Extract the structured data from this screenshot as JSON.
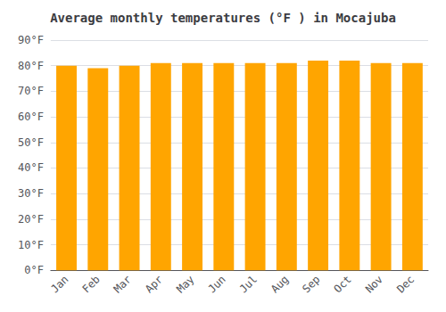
{
  "chart_data": {
    "type": "bar",
    "title": "Average monthly temperatures (°F ) in Mocajuba",
    "categories": [
      "Jan",
      "Feb",
      "Mar",
      "Apr",
      "May",
      "Jun",
      "Jul",
      "Aug",
      "Sep",
      "Oct",
      "Nov",
      "Dec"
    ],
    "values": [
      80,
      79,
      80,
      81,
      81,
      81,
      81,
      81,
      82,
      82,
      81,
      81
    ],
    "color": "#FFA500",
    "ylim": [
      0,
      90
    ],
    "yticks": [
      {
        "value": 0,
        "label": "0°F"
      },
      {
        "value": 10,
        "label": "10°F"
      },
      {
        "value": 20,
        "label": "20°F"
      },
      {
        "value": 30,
        "label": "30°F"
      },
      {
        "value": 40,
        "label": "40°F"
      },
      {
        "value": 50,
        "label": "50°F"
      },
      {
        "value": 60,
        "label": "60°F"
      },
      {
        "value": 70,
        "label": "70°F"
      },
      {
        "value": 80,
        "label": "80°F"
      },
      {
        "value": 90,
        "label": "90°F"
      }
    ],
    "grid": true
  }
}
